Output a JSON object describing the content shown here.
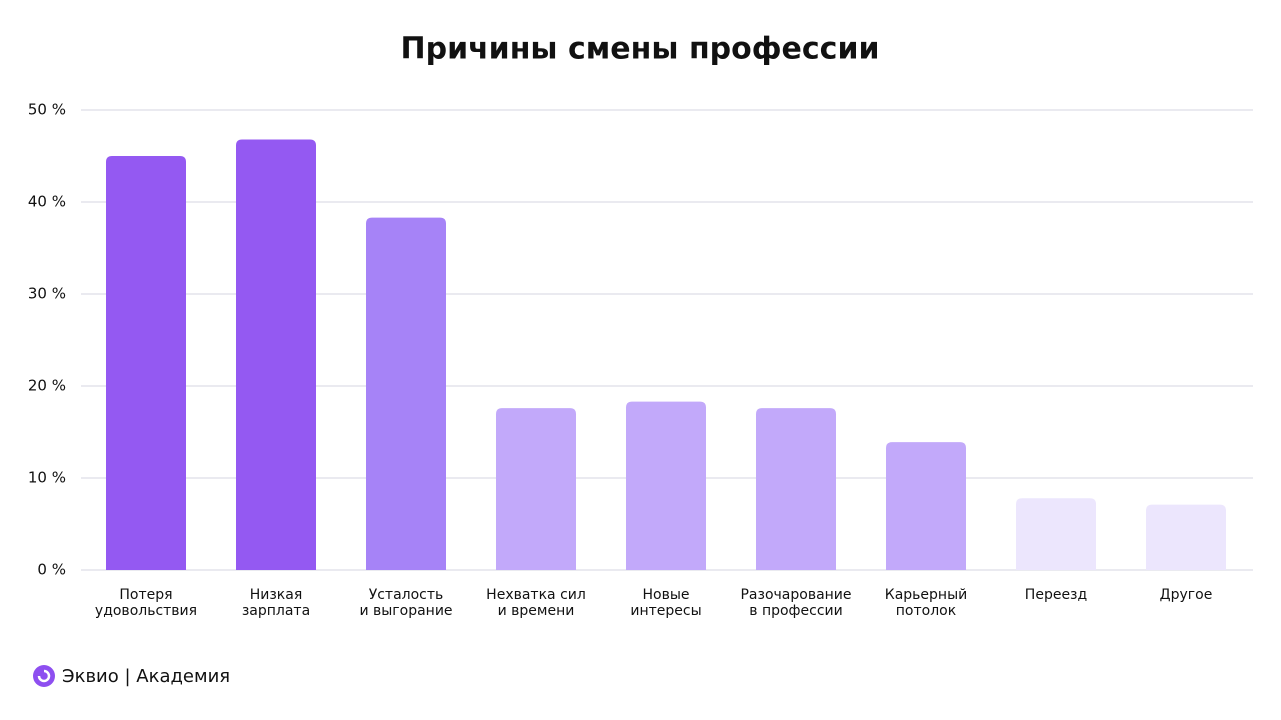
{
  "chart_data": {
    "type": "bar",
    "title": "Причины смены профессии",
    "categories": [
      "Потеря\nудовольствия",
      "Низкая\nзарплата",
      "Усталость\nи выгорание",
      "Нехватка сил\nи времени",
      "Новые\nинтересы",
      "Разочарование\nв профессии",
      "Карьерный\nпотолок",
      "Переезд",
      "Другое"
    ],
    "values": [
      45,
      46.8,
      38.3,
      17.6,
      18.3,
      17.6,
      13.9,
      7.8,
      7.1
    ],
    "colors": [
      "#9459f2",
      "#9459f2",
      "#a683f7",
      "#c2a9fa",
      "#c2a9fa",
      "#c2a9fa",
      "#c2a9fa",
      "#ece6fd",
      "#ece6fd"
    ],
    "ylim": [
      0,
      50
    ],
    "yticks": [
      {
        "value": 0,
        "label": "0 %"
      },
      {
        "value": 10,
        "label": "10 %"
      },
      {
        "value": 20,
        "label": "20 %"
      },
      {
        "value": 30,
        "label": "30 %"
      },
      {
        "value": 40,
        "label": "40 %"
      },
      {
        "value": 50,
        "label": "50 %"
      }
    ],
    "grid": true
  },
  "footer": {
    "brand": "Эквио | Академия"
  }
}
